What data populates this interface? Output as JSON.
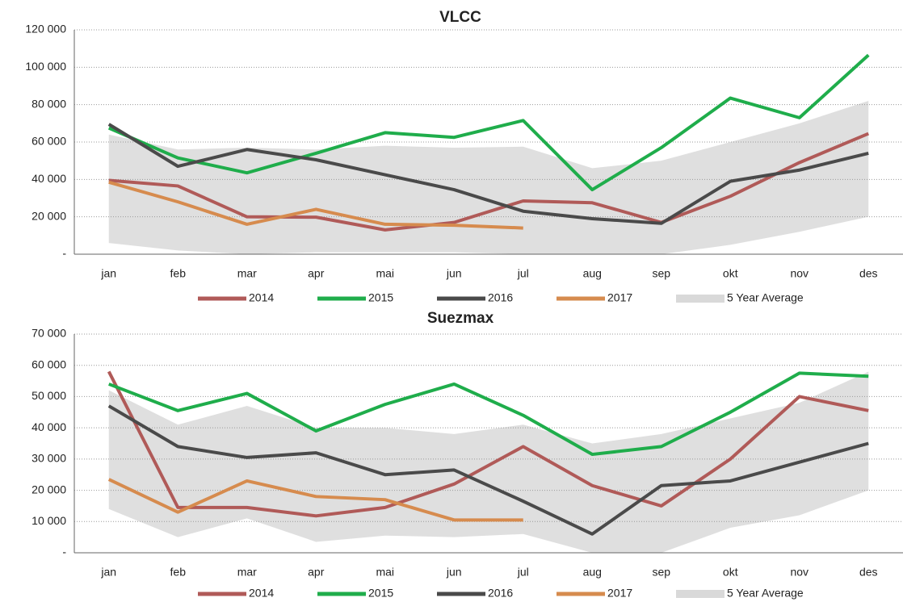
{
  "chart_data": [
    {
      "type": "line",
      "title": "VLCC",
      "categories": [
        "jan",
        "feb",
        "mar",
        "apr",
        "mai",
        "jun",
        "jul",
        "aug",
        "sep",
        "okt",
        "nov",
        "des"
      ],
      "ylim": [
        0,
        120000
      ],
      "yticks": [
        {
          "value": 0,
          "label": "-"
        },
        {
          "value": 20000,
          "label": "20 000"
        },
        {
          "value": 40000,
          "label": "40 000"
        },
        {
          "value": 60000,
          "label": "60 000"
        },
        {
          "value": 80000,
          "label": "80 000"
        },
        {
          "value": 100000,
          "label": "100 000"
        },
        {
          "value": 120000,
          "label": "120 000"
        }
      ],
      "grid": true,
      "band": {
        "name": "5 Year Average",
        "color": "#d9d9d9",
        "upper": [
          64000,
          56000,
          57000,
          56000,
          58000,
          57000,
          57500,
          46000,
          50000,
          60000,
          70000,
          82000
        ],
        "lower": [
          6000,
          2000,
          0,
          1000,
          1000,
          1000,
          0,
          0,
          0,
          5000,
          12000,
          20000
        ]
      },
      "series": [
        {
          "name": "2014",
          "color": "#b05a58",
          "values": [
            39500,
            36500,
            20000,
            19800,
            13000,
            17000,
            28500,
            27500,
            17000,
            31000,
            49000,
            64500
          ]
        },
        {
          "name": "2015",
          "color": "#1fad4b",
          "values": [
            67500,
            51500,
            43500,
            54000,
            65000,
            62500,
            71500,
            34500,
            57000,
            83500,
            73000,
            106500
          ]
        },
        {
          "name": "2016",
          "color": "#4a4a4a",
          "values": [
            69500,
            47000,
            56000,
            50500,
            42500,
            34500,
            23000,
            19000,
            16500,
            39000,
            45000,
            54000
          ]
        },
        {
          "name": "2017",
          "color": "#d68b4e",
          "values": [
            38500,
            28000,
            16000,
            24000,
            16000,
            15500,
            14000,
            null,
            null,
            null,
            null,
            null
          ]
        }
      ]
    },
    {
      "type": "line",
      "title": "Suezmax",
      "categories": [
        "jan",
        "feb",
        "mar",
        "apr",
        "mai",
        "jun",
        "jul",
        "aug",
        "sep",
        "okt",
        "nov",
        "des"
      ],
      "ylim": [
        0,
        70000
      ],
      "yticks": [
        {
          "value": 0,
          "label": "-"
        },
        {
          "value": 10000,
          "label": "10 000"
        },
        {
          "value": 20000,
          "label": "20 000"
        },
        {
          "value": 30000,
          "label": "30 000"
        },
        {
          "value": 40000,
          "label": "40 000"
        },
        {
          "value": 50000,
          "label": "50 000"
        },
        {
          "value": 60000,
          "label": "60 000"
        },
        {
          "value": 70000,
          "label": "70 000"
        }
      ],
      "grid": true,
      "band": {
        "name": "5 Year Average",
        "color": "#d9d9d9",
        "upper": [
          52000,
          41000,
          47000,
          40000,
          40000,
          38000,
          41000,
          35000,
          38000,
          43000,
          48000,
          58000
        ],
        "lower": [
          14000,
          5000,
          11000,
          3500,
          5500,
          5000,
          6000,
          0,
          0,
          8000,
          12000,
          20000
        ]
      },
      "series": [
        {
          "name": "2014",
          "color": "#b05a58",
          "values": [
            58000,
            14500,
            14500,
            11800,
            14500,
            22000,
            34000,
            21500,
            15000,
            30000,
            50000,
            45500
          ]
        },
        {
          "name": "2015",
          "color": "#1fad4b",
          "values": [
            54000,
            45500,
            51000,
            39000,
            47500,
            54000,
            44000,
            31500,
            34000,
            45000,
            57500,
            56500
          ]
        },
        {
          "name": "2016",
          "color": "#4a4a4a",
          "values": [
            47000,
            34000,
            30500,
            32000,
            25000,
            26500,
            16500,
            6000,
            21500,
            23000,
            29000,
            35000
          ]
        },
        {
          "name": "2017",
          "color": "#d68b4e",
          "values": [
            23500,
            13000,
            23000,
            18000,
            17000,
            10500,
            10500,
            null,
            null,
            null,
            null,
            null
          ]
        }
      ]
    }
  ]
}
